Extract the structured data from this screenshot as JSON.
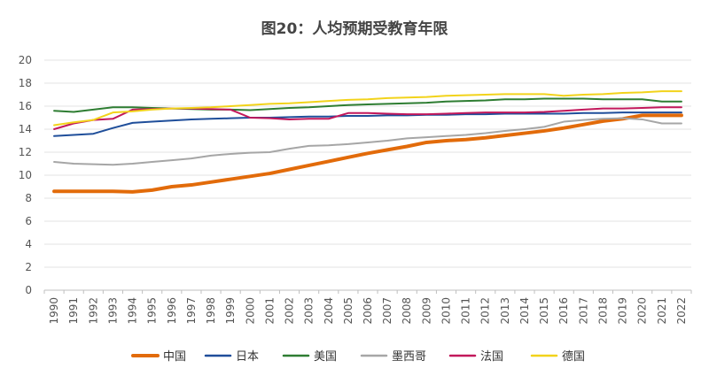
{
  "chart_data": {
    "type": "line",
    "title": "图20：人均预期受教育年限",
    "xlabel": "",
    "ylabel": "",
    "ylim": [
      0,
      20
    ],
    "yticks": [
      0,
      2,
      4,
      6,
      8,
      10,
      12,
      14,
      16,
      18,
      20
    ],
    "grid": true,
    "legend_position": "bottom",
    "x": [
      "1990",
      "1991",
      "1992",
      "1993",
      "1994",
      "1995",
      "1996",
      "1997",
      "1998",
      "1999",
      "2000",
      "2001",
      "2002",
      "2003",
      "2004",
      "2005",
      "2006",
      "2007",
      "2008",
      "2009",
      "2010",
      "2011",
      "2012",
      "2013",
      "2014",
      "2015",
      "2016",
      "2017",
      "2018",
      "2019",
      "2020",
      "2021",
      "2022"
    ],
    "series": [
      {
        "name": "中国",
        "color": "#E26B0A",
        "values": [
          8.6,
          8.6,
          8.6,
          8.6,
          8.55,
          8.7,
          9.0,
          9.15,
          9.4,
          9.65,
          9.9,
          10.15,
          10.5,
          10.85,
          11.2,
          11.55,
          11.9,
          12.2,
          12.5,
          12.85,
          13.0,
          13.1,
          13.25,
          13.45,
          13.65,
          13.85,
          14.1,
          14.4,
          14.7,
          14.9,
          15.2,
          15.2,
          15.2
        ]
      },
      {
        "name": "日本",
        "color": "#1F4E9A",
        "values": [
          13.4,
          13.5,
          13.6,
          14.1,
          14.55,
          14.65,
          14.75,
          14.85,
          14.9,
          14.95,
          15.0,
          15.0,
          15.05,
          15.1,
          15.1,
          15.15,
          15.15,
          15.2,
          15.2,
          15.25,
          15.25,
          15.3,
          15.3,
          15.35,
          15.35,
          15.35,
          15.35,
          15.4,
          15.4,
          15.45,
          15.45,
          15.45,
          15.45
        ]
      },
      {
        "name": "美国",
        "color": "#2E7D32",
        "values": [
          15.6,
          15.5,
          15.7,
          15.9,
          15.9,
          15.85,
          15.8,
          15.75,
          15.7,
          15.7,
          15.65,
          15.75,
          15.85,
          15.9,
          16.0,
          16.1,
          16.15,
          16.2,
          16.25,
          16.3,
          16.4,
          16.45,
          16.5,
          16.6,
          16.6,
          16.65,
          16.65,
          16.65,
          16.6,
          16.6,
          16.6,
          16.4,
          16.4
        ]
      },
      {
        "name": "墨西哥",
        "color": "#A6A6A6",
        "values": [
          11.15,
          11.0,
          10.95,
          10.9,
          11.0,
          11.15,
          11.3,
          11.45,
          11.7,
          11.85,
          11.95,
          12.0,
          12.3,
          12.55,
          12.6,
          12.7,
          12.85,
          13.0,
          13.2,
          13.3,
          13.4,
          13.5,
          13.65,
          13.85,
          14.0,
          14.2,
          14.65,
          14.8,
          14.9,
          14.95,
          14.85,
          14.5,
          14.5
        ]
      },
      {
        "name": "法国",
        "color": "#C2185B",
        "values": [
          14.0,
          14.5,
          14.8,
          14.9,
          15.7,
          15.75,
          15.8,
          15.8,
          15.75,
          15.7,
          15.0,
          14.95,
          14.85,
          14.9,
          14.9,
          15.4,
          15.4,
          15.35,
          15.3,
          15.3,
          15.35,
          15.4,
          15.45,
          15.45,
          15.45,
          15.5,
          15.6,
          15.7,
          15.8,
          15.8,
          15.85,
          15.9,
          15.9
        ]
      },
      {
        "name": "德国",
        "color": "#F2D31B",
        "values": [
          14.35,
          14.6,
          14.8,
          15.45,
          15.55,
          15.7,
          15.8,
          15.85,
          15.9,
          16.0,
          16.1,
          16.2,
          16.25,
          16.35,
          16.45,
          16.55,
          16.6,
          16.7,
          16.75,
          16.8,
          16.9,
          16.95,
          17.0,
          17.05,
          17.05,
          17.05,
          16.9,
          17.0,
          17.05,
          17.15,
          17.2,
          17.3,
          17.3
        ]
      }
    ]
  }
}
